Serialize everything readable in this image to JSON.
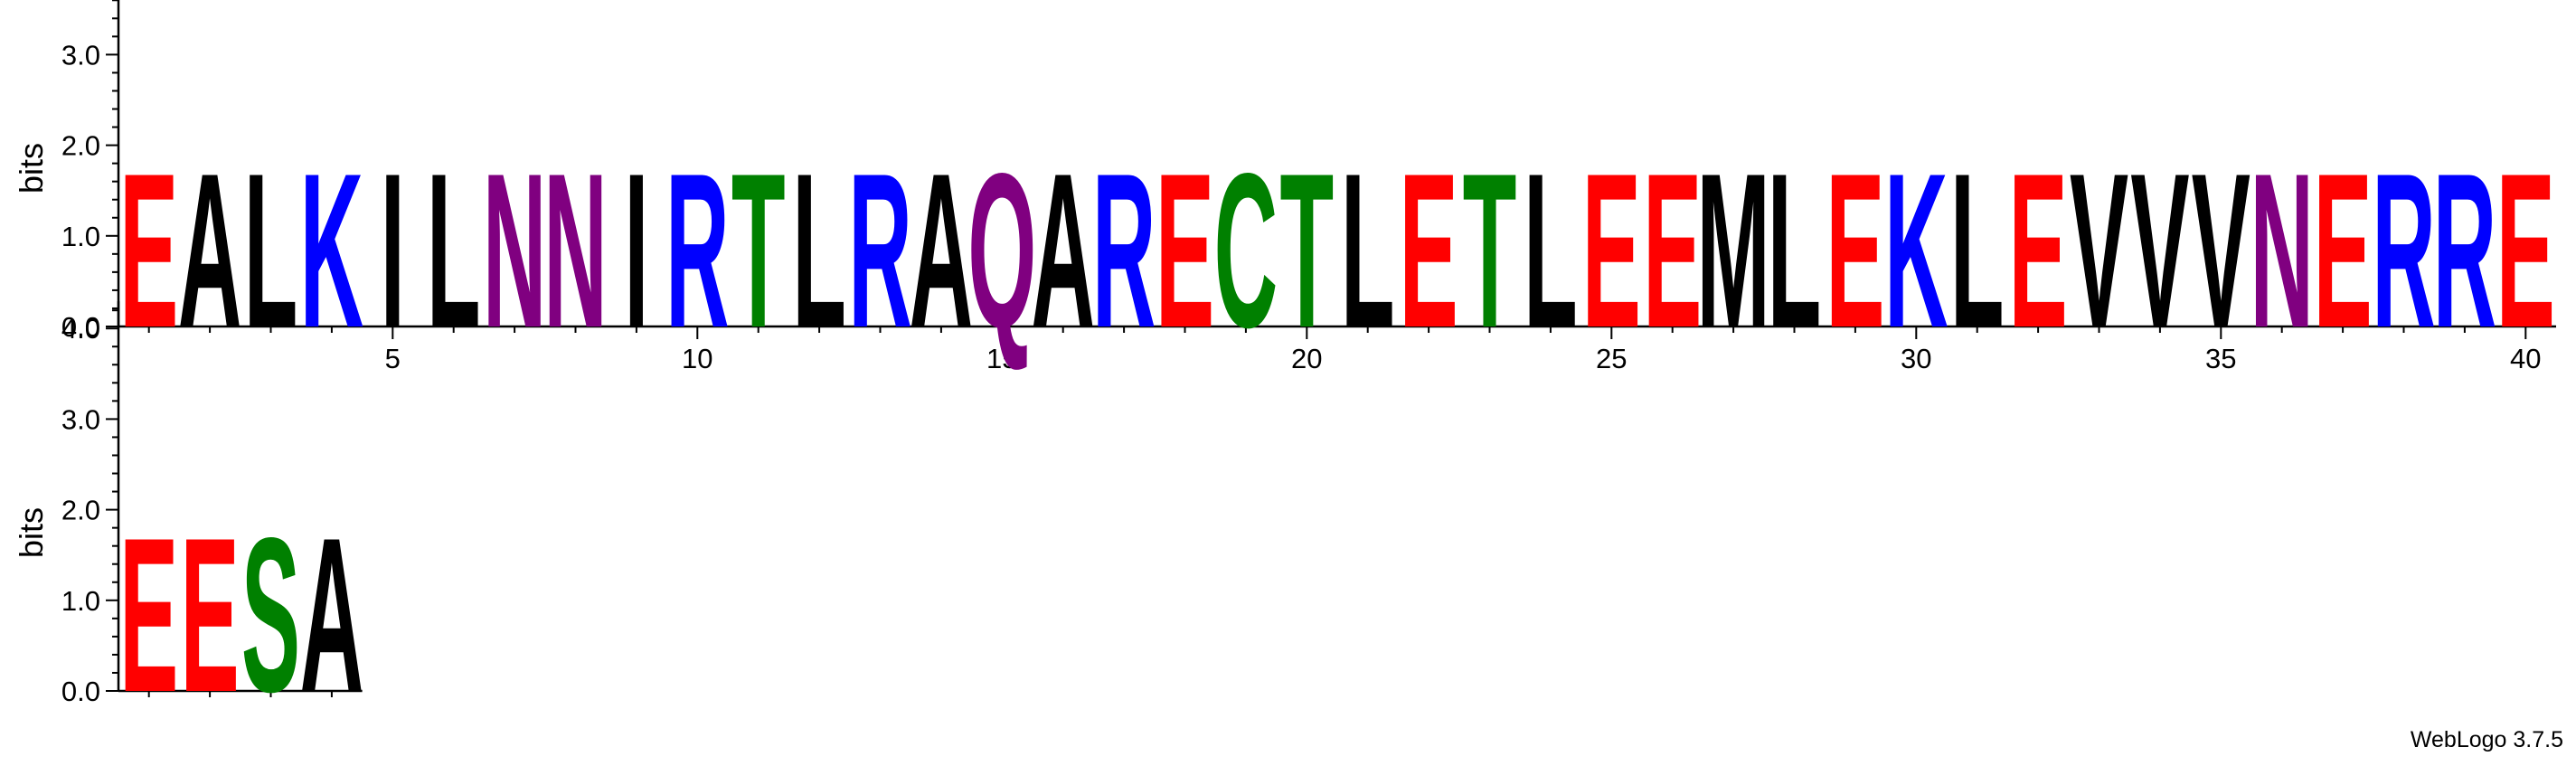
{
  "chart_data": {
    "type": "sequence-logo",
    "ylabel": "bits",
    "ylim": [
      0,
      4.3
    ],
    "yticks": [
      "0.0",
      "1.0",
      "2.0",
      "3.0",
      "4.0"
    ],
    "xticks": [
      5,
      10,
      15,
      20,
      25,
      30,
      35,
      40
    ],
    "positions_per_row": 40,
    "height_bits": 1.75,
    "sequence": "EALKILNNIRTLRAQARECTLETLEEMLEKLEVVVNERREEESA",
    "colors": {
      "acidic": "#ff0000",
      "basic": "#0000ff",
      "polar": "#008000",
      "amide": "#800080",
      "hydrophobic": "#000000"
    },
    "letter_colors": {
      "D": "#ff0000",
      "E": "#ff0000",
      "K": "#0000ff",
      "R": "#0000ff",
      "H": "#0000ff",
      "S": "#008000",
      "T": "#008000",
      "C": "#008000",
      "G": "#008000",
      "Y": "#008000",
      "N": "#800080",
      "Q": "#800080",
      "A": "#000000",
      "V": "#000000",
      "L": "#000000",
      "I": "#000000",
      "P": "#000000",
      "F": "#000000",
      "M": "#000000",
      "W": "#000000"
    }
  },
  "footer": "WebLogo 3.7.5"
}
